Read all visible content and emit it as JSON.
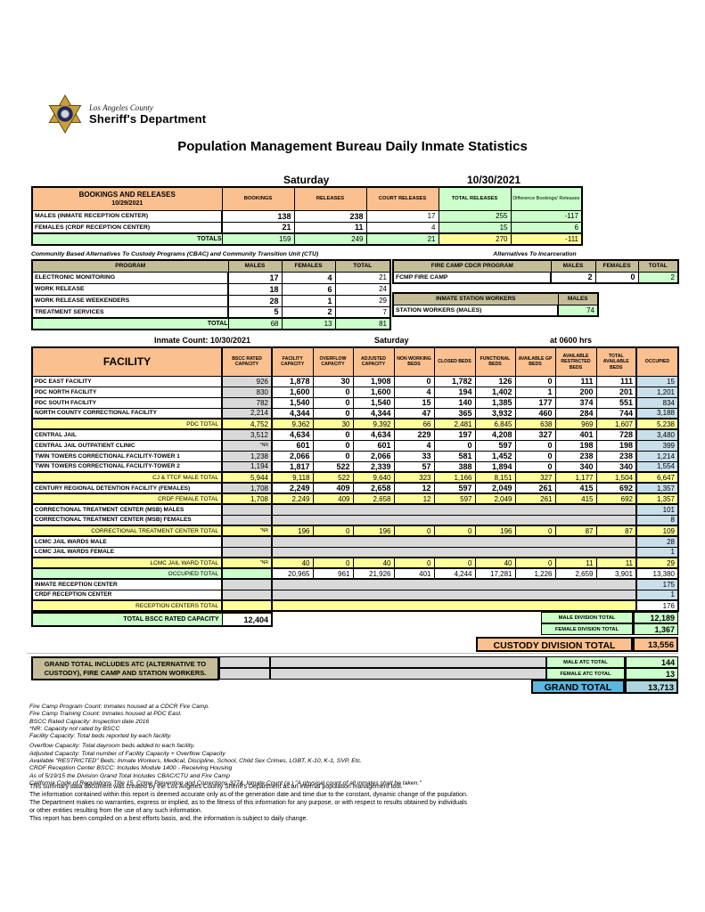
{
  "header": {
    "agency_line1": "Los Angeles County",
    "agency_line2": "Sheriff's Department",
    "title": "Population Management Bureau Daily Inmate Statistics",
    "day": "Saturday",
    "date": "10/30/2021"
  },
  "bookings": {
    "title": "BOOKINGS AND RELEASES",
    "subtitle": "10/29/2021",
    "columns": [
      "BOOKINGS",
      "RELEASES",
      "COURT RELEASES",
      "TOTAL RELEASES",
      "Difference Bookings/ Releases"
    ],
    "rows": [
      {
        "label": "MALES (INMATE RECEPTION CENTER)",
        "values": [
          "138",
          "238",
          "17",
          "255",
          "-117"
        ]
      },
      {
        "label": "FEMALES (CRDF RECEPTION CENTER)",
        "values": [
          "21",
          "11",
          "4",
          "15",
          "6"
        ]
      }
    ],
    "totals": {
      "label": "TOTALS",
      "values": [
        "159",
        "249",
        "21",
        "270",
        "-111"
      ]
    }
  },
  "cbac": {
    "title": "Community Based Alternatives To Custody Programs (CBAC) and Community Transition Unit (CTU)",
    "columns": [
      "PROGRAM",
      "MALES",
      "FEMALES",
      "TOTAL"
    ],
    "rows": [
      {
        "label": "ELECTRONIC MONITORING",
        "values": [
          "17",
          "4",
          "21"
        ]
      },
      {
        "label": "WORK RELEASE",
        "values": [
          "18",
          "6",
          "24"
        ]
      },
      {
        "label": "WORK RELEASE WEEKENDERS",
        "values": [
          "28",
          "1",
          "29"
        ]
      },
      {
        "label": "TREATMENT SERVICES",
        "values": [
          "5",
          "2",
          "7"
        ]
      }
    ],
    "totals": {
      "label": "TOTAL",
      "values": [
        "68",
        "13",
        "81"
      ]
    }
  },
  "alternatives": {
    "title": "Alternatives To Incarceration",
    "fire_camp": {
      "columns": [
        "FIRE CAMP CDCR PROGRAM",
        "MALES",
        "FEMALES",
        "TOTAL"
      ],
      "row": {
        "label": "FCMP FIRE CAMP",
        "values": [
          "2",
          "0",
          "2"
        ]
      }
    },
    "station_workers": {
      "title": "INMATE STATION WORKERS",
      "column": "MALES",
      "row": {
        "label": "STATION WORKERS (MALES)",
        "value": "74"
      }
    }
  },
  "count_header": {
    "left": "Inmate Count: 10/30/2021",
    "center": "Saturday",
    "right": "at 0600 hrs"
  },
  "facility_table": {
    "columns": [
      "FACILITY",
      "BSCC RATED CAPACITY",
      "FACILITY CAPACITY",
      "OVERFLOW CAPACITY",
      "ADJUSTED CAPACITY",
      "NON WORKING BEDS",
      "CLOSED BEDS",
      "FUNCTIONAL BEDS",
      "AVAILABLE GP BEDS",
      "AVAILABLE RESTRICTED BEDS",
      "TOTAL AVAILABLE BEDS",
      "OCCUPIED"
    ],
    "rows": [
      {
        "type": "data",
        "label": "PDC EAST FACILITY",
        "bscc": "926",
        "values": [
          "1,878",
          "30",
          "1,908",
          "0",
          "1,782",
          "126",
          "0",
          "111",
          "111"
        ],
        "occupied": "15"
      },
      {
        "type": "data",
        "label": "PDC NORTH FACILITY",
        "bscc": "830",
        "values": [
          "1,600",
          "0",
          "1,600",
          "4",
          "194",
          "1,402",
          "1",
          "200",
          "201"
        ],
        "occupied": "1,201"
      },
      {
        "type": "data",
        "label": "PDC SOUTH FACILITY",
        "bscc": "782",
        "values": [
          "1,540",
          "0",
          "1,540",
          "15",
          "140",
          "1,385",
          "177",
          "374",
          "551"
        ],
        "occupied": "834"
      },
      {
        "type": "data",
        "label": "NORTH COUNTY CORRECTIONAL FACILITY",
        "bscc": "2,214",
        "values": [
          "4,344",
          "0",
          "4,344",
          "47",
          "365",
          "3,932",
          "460",
          "284",
          "744"
        ],
        "occupied": "3,188"
      },
      {
        "type": "total",
        "label": "PDC TOTAL",
        "bscc": "4,752",
        "values": [
          "9,362",
          "30",
          "9,392",
          "66",
          "2,481",
          "6,845",
          "638",
          "969",
          "1,607"
        ],
        "occupied": "5,238"
      },
      {
        "type": "data",
        "label": "CENTRAL JAIL",
        "bscc": "3,512",
        "values": [
          "4,634",
          "0",
          "4,634",
          "229",
          "197",
          "4,208",
          "327",
          "401",
          "728"
        ],
        "occupied": "3,480"
      },
      {
        "type": "data",
        "label": "CENTRAL JAIL OUTPATIENT CLINIC",
        "bscc": "*NR",
        "values": [
          "601",
          "0",
          "601",
          "4",
          "0",
          "597",
          "0",
          "198",
          "198"
        ],
        "occupied": "399"
      },
      {
        "type": "data",
        "label": "TWIN TOWERS CORRECTIONAL FACILITY-TOWER 1",
        "bscc": "1,238",
        "values": [
          "2,066",
          "0",
          "2,066",
          "33",
          "581",
          "1,452",
          "0",
          "238",
          "238"
        ],
        "occupied": "1,214"
      },
      {
        "type": "data",
        "label": "TWIN TOWERS CORRECTIONAL FACILITY-TOWER 2",
        "bscc": "1,194",
        "values": [
          "1,817",
          "522",
          "2,339",
          "57",
          "388",
          "1,894",
          "0",
          "340",
          "340"
        ],
        "occupied": "1,554"
      },
      {
        "type": "total",
        "label": "CJ & TTCF MALE TOTAL",
        "bscc": "5,944",
        "values": [
          "9,118",
          "522",
          "9,640",
          "323",
          "1,166",
          "8,151",
          "327",
          "1,177",
          "1,504"
        ],
        "occupied": "6,647"
      },
      {
        "type": "data",
        "label": "CENTURY REGIONAL DETENTION FACILITY (FEMALES)",
        "bscc": "1,708",
        "values": [
          "2,249",
          "409",
          "2,658",
          "12",
          "597",
          "2,049",
          "261",
          "415",
          "692"
        ],
        "occupied": "1,357"
      },
      {
        "type": "total",
        "label": "CRDF FEMALE TOTAL",
        "bscc": "1,708",
        "values": [
          "2,249",
          "409",
          "2,658",
          "12",
          "597",
          "2,049",
          "261",
          "415",
          "692"
        ],
        "occupied": "1,357"
      },
      {
        "type": "merged",
        "label": "CORRECTIONAL TREATMENT CENTER (MSB) MALES",
        "occupied": "101"
      },
      {
        "type": "merged",
        "label": "CORRECTIONAL TREATMENT CENTER (MSB) FEMALES",
        "occupied": "8"
      },
      {
        "type": "total",
        "label": "CORRECTIONAL TREATMENT CENTER  TOTAL",
        "bscc": "*NR",
        "values": [
          "196",
          "0",
          "196",
          "0",
          "0",
          "196",
          "0",
          "87",
          "87"
        ],
        "occupied": "109"
      },
      {
        "type": "merged",
        "label": "LCMC JAIL WARDS MALE",
        "occupied": "28"
      },
      {
        "type": "merged",
        "label": "LCMC JAIL WARDS FEMALE",
        "occupied": "1"
      },
      {
        "type": "total",
        "label": "LCMC JAIL WARD TOTAL",
        "bscc": "*NR",
        "values": [
          "40",
          "0",
          "40",
          "0",
          "0",
          "40",
          "0",
          "11",
          "11"
        ],
        "occupied": "29"
      },
      {
        "type": "occupied_total",
        "label": "OCCUPIED TOTAL",
        "values": [
          "20,965",
          "961",
          "21,926",
          "401",
          "4,244",
          "17,281",
          "1,226",
          "2,659",
          "3,901"
        ],
        "occupied": "13,380"
      },
      {
        "type": "merged",
        "label": "INMATE RECEPTION CENTER",
        "occupied": "175"
      },
      {
        "type": "merged",
        "label": "CRDF RECEPTION CENTER",
        "occupied": "1"
      },
      {
        "type": "reception_total",
        "label": "RECEPTION CENTERS TOTAL",
        "occupied": "176"
      }
    ]
  },
  "bscc_total": {
    "label": "TOTAL BSCC RATED CAPACITY",
    "value": "12,404"
  },
  "division_totals": [
    {
      "label": "MALE DIVISION TOTAL",
      "value": "12,189",
      "style": "green"
    },
    {
      "label": "FEMALE DIVISION TOTAL",
      "value": "1,367",
      "style": "green"
    },
    {
      "label": "CUSTODY DIVISION TOTAL",
      "value": "13,556",
      "style": "orange"
    }
  ],
  "grand_total": {
    "note": "GRAND TOTAL INCLUDES ATC (ALTERNATIVE TO CUSTODY), FIRE CAMP AND STATION WORKERS.",
    "rows": [
      {
        "label": "MALE ATC TOTAL",
        "value": "144",
        "style": "green"
      },
      {
        "label": "FEMALE ATC TOTAL",
        "value": "13",
        "style": "green"
      },
      {
        "label": "GRAND TOTAL",
        "value": "13,713",
        "style": "blue"
      }
    ]
  },
  "footnotes": [
    "Fire Camp Program Count: Inmates housed at a CDCR Fire Camp.",
    "Fire Camp Training Count: Inmates housed at PDC East.",
    "BSCC Rated Capacity: Inspection date 2016",
    "*NR: Capacity not rated by BSCC",
    "Facility Capacity: Total beds reported by each facility.",
    "Overflow Capacity: Total dayroom beds added to each facility.",
    "Adjusted Capacity: Total number of Facility Capacity + Overflow Capacity",
    "Available \"RESTRICTED\" Beds: Inmate Workers, Medical, Discipline, School, Child Sex Crimes, LGBT, K-10, K-1, SVP, Etc.",
    "CRDF Reception Center BSCC: Includes Module 1400 - Receiving Housing",
    "As of 5/19/15 the Division Grand Total Includes CBAC/CTU and Fire Camp",
    "California Code of Regulations Title 15. Crime Prevention and Corrections 3274. Inmate Count (a.) \"A physical count of all inmates shall be taken.\""
  ],
  "disclaimer": [
    "This summary data document was created by the Los Angeles County Sheriff's Department as an internal population management tool.",
    "The information contained within this report is deemed accurate only as of the generation date and time due to the constant, dynamic change of the population.",
    "The Department makes no warranties, express or implied, as to the fitness of this information for any purpose, or with respect to results obtained by individuals",
    "or other entities resulting from the use of any such information.",
    "This report has been compiled on a best efforts basis, and, the information is subject to daily change."
  ]
}
